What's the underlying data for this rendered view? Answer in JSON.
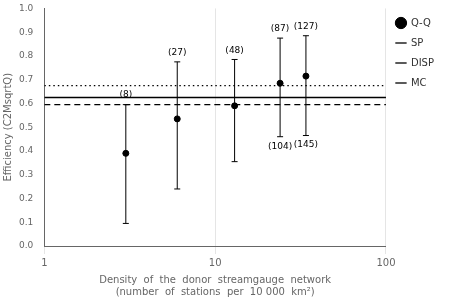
{
  "chart_data": {
    "type": "scatter",
    "xlabel": "Density  of  the  donor  streamgauge  network\n(number  of  stations  per  10 000  km²)",
    "ylabel": "Efficiency (C2MsqrtQ)",
    "log": "x",
    "xlim": [
      1,
      100
    ],
    "xticks": [
      1,
      10,
      100
    ],
    "ylim": [
      0.0,
      1.0
    ],
    "yticks": [
      {
        "value": 0.0,
        "label": "0.0"
      },
      0.1,
      0.2,
      0.3,
      0.4,
      0.5,
      0.6,
      0.7,
      0.8,
      0.9,
      {
        "value": 1.0,
        "label": "1.0"
      }
    ],
    "grid": "x",
    "legend": "right",
    "series": [
      {
        "name": "Q-Q",
        "type": "scatter",
        "marker": "circle",
        "color": "black",
        "x": [
          3,
          6,
          13,
          24,
          34
        ],
        "values": [
          0.39,
          0.535,
          0.59,
          0.685,
          0.715
        ],
        "p10": [
          0.095,
          0.24,
          0.355,
          0.46,
          0.465
        ],
        "p90": [
          0.595,
          0.775,
          0.785,
          0.875,
          0.885
        ]
      },
      {
        "name": "SP",
        "type": "hline",
        "values": [
          0.625
        ],
        "line_style": "solid",
        "color": "black"
      },
      {
        "name": "DISP",
        "type": "hline",
        "values": [
          0.675
        ],
        "line_style": "dotted",
        "color": "black"
      },
      {
        "name": "MC",
        "type": "hline",
        "values": [
          0.595
        ],
        "line_style": "dashed",
        "color": "black"
      }
    ],
    "annotations": [
      {
        "text": "(8)",
        "x": 3,
        "y": 0.615,
        "anchor": "bottom"
      },
      {
        "text": "(27)",
        "x": 6,
        "y": 0.79,
        "anchor": "bottom"
      },
      {
        "text": "(48)",
        "x": 13,
        "y": 0.8,
        "anchor": "bottom"
      },
      {
        "text": "(87)",
        "x": 24,
        "y": 0.89,
        "anchor": "bottom"
      },
      {
        "text": "(127)",
        "x": 34,
        "y": 0.9,
        "anchor": "bottom"
      },
      {
        "text": "(104)",
        "x": 24,
        "y": 0.44,
        "anchor": "top"
      },
      {
        "text": "(145)",
        "x": 34,
        "y": 0.45,
        "anchor": "top"
      }
    ]
  }
}
